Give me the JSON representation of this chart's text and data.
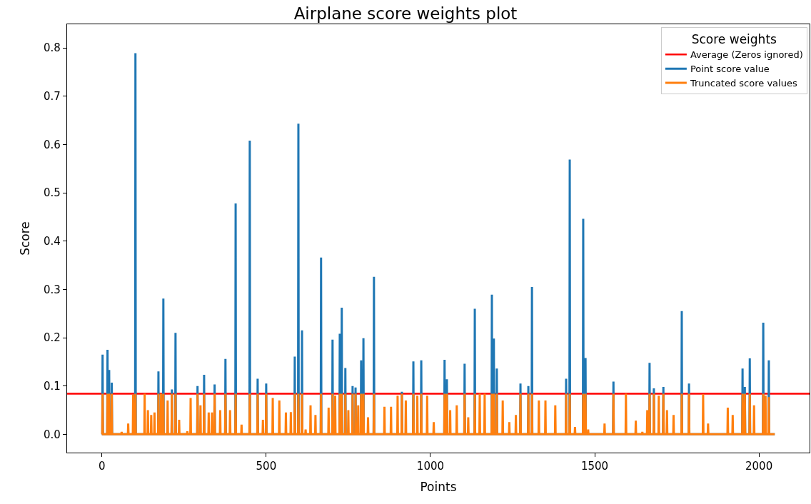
{
  "chart_data": {
    "type": "line",
    "title": "Airplane score weights plot",
    "xlabel": "Points",
    "ylabel": "Score",
    "legend_title": "Score weights",
    "legend": "top right",
    "grid": false,
    "xlim": [
      -106,
      2154
    ],
    "xticks": [
      0,
      500,
      1000,
      1500,
      2000
    ],
    "ylim": [
      -0.038,
      0.849
    ],
    "yticks": [
      {
        "value": 0,
        "label": "0.0"
      },
      {
        "value": 0.1,
        "label": "0.1"
      },
      {
        "value": 0.2,
        "label": "0.2"
      },
      {
        "value": 0.3,
        "label": "0.3"
      },
      {
        "value": 0.4,
        "label": "0.4"
      },
      {
        "value": 0.5,
        "label": "0.5"
      },
      {
        "value": 0.6,
        "label": "0.6"
      },
      {
        "value": 0.7,
        "label": "0.7"
      },
      {
        "value": 0.8,
        "label": "0.8"
      }
    ],
    "ref_lines": [
      {
        "axis": "y",
        "value": 0.084,
        "label": "Average (Zeros ignored)",
        "color": "#ff0000"
      }
    ],
    "series": [
      {
        "name": "Point score value",
        "color": "#1f77b4",
        "x": [
          0,
          1,
          2,
          3,
          16,
          17,
          18,
          21,
          22,
          23,
          29,
          30,
          31,
          101,
          102,
          103,
          171,
          172,
          173,
          186,
          187,
          188,
          212,
          213,
          214,
          223,
          224,
          225,
          290,
          291,
          292,
          310,
          311,
          312,
          342,
          343,
          344,
          375,
          376,
          377,
          406,
          407,
          408,
          449,
          450,
          451,
          473,
          474,
          475,
          499,
          500,
          501,
          586,
          587,
          588,
          597,
          598,
          599,
          608,
          609,
          610,
          666,
          667,
          668,
          701,
          702,
          703,
          723,
          724,
          725,
          729,
          730,
          731,
          740,
          741,
          742,
          762,
          763,
          764,
          771,
          772,
          773,
          788,
          789,
          790,
          795,
          796,
          797,
          827,
          828,
          829,
          912,
          913,
          914,
          947,
          948,
          949,
          971,
          972,
          973,
          1042,
          1043,
          1044,
          1049,
          1050,
          1051,
          1103,
          1104,
          1105,
          1134,
          1135,
          1136,
          1186,
          1187,
          1188,
          1192,
          1193,
          1194,
          1201,
          1202,
          1203,
          1273,
          1274,
          1275,
          1297,
          1298,
          1299,
          1308,
          1309,
          1310,
          1412,
          1413,
          1414,
          1423,
          1424,
          1425,
          1464,
          1465,
          1466,
          1471,
          1472,
          1473,
          1556,
          1557,
          1558,
          1666,
          1667,
          1668,
          1679,
          1680,
          1681,
          1708,
          1709,
          1710,
          1764,
          1765,
          1766,
          1786,
          1787,
          1788,
          1949,
          1950,
          1951,
          1956,
          1957,
          1958,
          1971,
          1972,
          1973,
          2012,
          2013,
          2014,
          2029,
          2030,
          2031,
          2048
        ],
        "values": [
          0,
          0,
          0.165,
          0,
          0,
          0.175,
          0,
          0,
          0.133,
          0,
          0,
          0.107,
          0,
          0,
          0.789,
          0,
          0,
          0.13,
          0,
          0,
          0.281,
          0,
          0,
          0.093,
          0,
          0,
          0.21,
          0,
          0,
          0.1,
          0,
          0,
          0.123,
          0,
          0,
          0.103,
          0,
          0,
          0.156,
          0,
          0,
          0.478,
          0,
          0,
          0.608,
          0,
          0,
          0.115,
          0,
          0,
          0.105,
          0,
          0,
          0.161,
          0,
          0,
          0.643,
          0,
          0,
          0.215,
          0,
          0,
          0.366,
          0,
          0,
          0.196,
          0,
          0,
          0.208,
          0,
          0,
          0.262,
          0,
          0,
          0.137,
          0,
          0,
          0.1,
          0,
          0,
          0.097,
          0,
          0,
          0.153,
          0,
          0,
          0.199,
          0,
          0,
          0.326,
          0,
          0,
          0.088,
          0,
          0,
          0.151,
          0,
          0,
          0.153,
          0,
          0,
          0.154,
          0,
          0,
          0.114,
          0,
          0,
          0.146,
          0,
          0,
          0.26,
          0,
          0,
          0.289,
          0,
          0,
          0.198,
          0,
          0,
          0.136,
          0,
          0,
          0.105,
          0,
          0,
          0.1,
          0,
          0,
          0.305,
          0,
          0,
          0.115,
          0,
          0,
          0.569,
          0,
          0,
          0.446,
          0,
          0,
          0.158,
          0,
          0,
          0.109,
          0,
          0,
          0.148,
          0,
          0,
          0.095,
          0,
          0,
          0.098,
          0,
          0,
          0.255,
          0,
          0,
          0.105,
          0,
          0,
          0.136,
          0,
          0,
          0.098,
          0,
          0,
          0.157,
          0,
          0,
          0.231,
          0,
          0,
          0.153,
          0,
          0
        ]
      },
      {
        "name": "Truncated score values",
        "color": "#ff7f0e",
        "x": [
          0,
          1,
          2,
          3,
          16,
          17,
          18,
          21,
          22,
          23,
          29,
          30,
          31,
          59,
          60,
          61,
          79,
          80,
          81,
          94,
          95,
          96,
          101,
          102,
          103,
          129,
          130,
          131,
          139,
          140,
          141,
          149,
          150,
          151,
          159,
          160,
          161,
          171,
          172,
          173,
          179,
          180,
          181,
          186,
          187,
          188,
          199,
          200,
          201,
          212,
          213,
          214,
          223,
          224,
          225,
          234,
          235,
          236,
          259,
          260,
          261,
          269,
          270,
          271,
          290,
          291,
          292,
          299,
          300,
          301,
          310,
          311,
          312,
          324,
          325,
          326,
          334,
          335,
          336,
          342,
          343,
          344,
          359,
          360,
          361,
          375,
          376,
          377,
          389,
          390,
          391,
          406,
          407,
          408,
          424,
          425,
          426,
          449,
          450,
          451,
          473,
          474,
          475,
          489,
          490,
          491,
          499,
          500,
          501,
          519,
          520,
          521,
          539,
          540,
          541,
          559,
          560,
          561,
          574,
          575,
          576,
          586,
          587,
          588,
          597,
          598,
          599,
          608,
          609,
          610,
          619,
          620,
          621,
          634,
          635,
          636,
          649,
          650,
          651,
          666,
          667,
          668,
          689,
          690,
          691,
          701,
          702,
          703,
          709,
          710,
          711,
          723,
          724,
          725,
          729,
          730,
          731,
          740,
          741,
          742,
          749,
          750,
          751,
          762,
          763,
          764,
          771,
          772,
          773,
          779,
          780,
          781,
          788,
          789,
          790,
          795,
          796,
          797,
          809,
          810,
          811,
          827,
          828,
          829,
          859,
          860,
          861,
          879,
          880,
          881,
          899,
          900,
          901,
          912,
          913,
          914,
          924,
          925,
          926,
          947,
          948,
          949,
          959,
          960,
          961,
          971,
          972,
          973,
          989,
          990,
          991,
          1009,
          1010,
          1011,
          1042,
          1043,
          1044,
          1049,
          1050,
          1051,
          1059,
          1060,
          1061,
          1079,
          1080,
          1081,
          1103,
          1104,
          1105,
          1114,
          1115,
          1116,
          1134,
          1135,
          1136,
          1149,
          1150,
          1151,
          1164,
          1165,
          1166,
          1186,
          1187,
          1188,
          1192,
          1193,
          1194,
          1201,
          1202,
          1203,
          1219,
          1220,
          1221,
          1239,
          1240,
          1241,
          1259,
          1260,
          1261,
          1273,
          1274,
          1275,
          1297,
          1298,
          1299,
          1308,
          1309,
          1310,
          1329,
          1330,
          1331,
          1349,
          1350,
          1351,
          1379,
          1380,
          1381,
          1412,
          1413,
          1414,
          1423,
          1424,
          1425,
          1439,
          1440,
          1441,
          1464,
          1465,
          1466,
          1471,
          1472,
          1473,
          1479,
          1480,
          1481,
          1529,
          1530,
          1531,
          1556,
          1557,
          1558,
          1594,
          1595,
          1596,
          1624,
          1625,
          1626,
          1644,
          1645,
          1646,
          1659,
          1660,
          1661,
          1666,
          1667,
          1668,
          1679,
          1680,
          1681,
          1694,
          1695,
          1696,
          1708,
          1709,
          1710,
          1719,
          1720,
          1721,
          1739,
          1740,
          1741,
          1764,
          1765,
          1766,
          1786,
          1787,
          1788,
          1829,
          1830,
          1831,
          1844,
          1845,
          1846,
          1904,
          1905,
          1906,
          1919,
          1920,
          1921,
          1949,
          1950,
          1951,
          1956,
          1957,
          1958,
          1971,
          1972,
          1973,
          1984,
          1985,
          1986,
          2012,
          2013,
          2014,
          2019,
          2020,
          2021,
          2029,
          2030,
          2031,
          2048
        ],
        "values": [
          0,
          0,
          0.084,
          0,
          0,
          0.084,
          0,
          0,
          0.084,
          0,
          0,
          0.084,
          0,
          0,
          0.005,
          0,
          0,
          0.022,
          0,
          0,
          0.082,
          0,
          0,
          0.084,
          0,
          0,
          0.084,
          0,
          0,
          0.05,
          0,
          0,
          0.04,
          0,
          0,
          0.045,
          0,
          0,
          0.084,
          0,
          0,
          0.084,
          0,
          0,
          0.084,
          0,
          0,
          0.07,
          0,
          0,
          0.084,
          0,
          0,
          0.084,
          0,
          0,
          0.03,
          0,
          0,
          0.006,
          0,
          0,
          0.075,
          0,
          0,
          0.084,
          0,
          0,
          0.06,
          0,
          0,
          0.084,
          0,
          0,
          0.045,
          0,
          0,
          0.045,
          0,
          0,
          0.084,
          0,
          0,
          0.05,
          0,
          0,
          0.084,
          0,
          0,
          0.05,
          0,
          0,
          0.084,
          0,
          0,
          0.02,
          0,
          0,
          0.084,
          0,
          0,
          0.084,
          0,
          0,
          0.03,
          0,
          0,
          0.084,
          0,
          0,
          0.075,
          0,
          0,
          0.07,
          0,
          0,
          0.045,
          0,
          0,
          0.046,
          0,
          0,
          0.084,
          0,
          0,
          0.084,
          0,
          0,
          0.084,
          0,
          0,
          0.01,
          0,
          0,
          0.06,
          0,
          0,
          0.04,
          0,
          0,
          0.084,
          0,
          0,
          0.055,
          0,
          0,
          0.084,
          0,
          0,
          0.08,
          0,
          0,
          0.084,
          0,
          0,
          0.084,
          0,
          0,
          0.084,
          0,
          0,
          0.05,
          0,
          0,
          0.084,
          0,
          0,
          0.084,
          0,
          0,
          0.06,
          0,
          0,
          0.084,
          0,
          0,
          0.084,
          0,
          0,
          0.035,
          0,
          0,
          0.084,
          0,
          0,
          0.057,
          0,
          0,
          0.057,
          0,
          0,
          0.08,
          0,
          0,
          0.084,
          0,
          0,
          0.07,
          0,
          0,
          0.084,
          0,
          0,
          0.08,
          0,
          0,
          0.084,
          0,
          0,
          0.08,
          0,
          0,
          0.025,
          0,
          0,
          0.084,
          0,
          0,
          0.084,
          0,
          0,
          0.05,
          0,
          0,
          0.06,
          0,
          0,
          0.084,
          0,
          0,
          0.035,
          0,
          0,
          0.084,
          0,
          0,
          0.084,
          0,
          0,
          0.084,
          0,
          0,
          0.084,
          0,
          0,
          0.084,
          0,
          0,
          0.084,
          0,
          0,
          0.07,
          0,
          0,
          0.025,
          0,
          0,
          0.04,
          0,
          0,
          0.084,
          0,
          0,
          0.084,
          0,
          0,
          0.084,
          0,
          0,
          0.07,
          0,
          0,
          0.07,
          0,
          0,
          0.06,
          0,
          0,
          0.084,
          0,
          0,
          0.084,
          0,
          0,
          0.015,
          0,
          0,
          0.084,
          0,
          0,
          0.084,
          0,
          0,
          0.01,
          0,
          0,
          0.022,
          0,
          0,
          0.084,
          0,
          0,
          0.084,
          0,
          0,
          0.028,
          0,
          0,
          0.005,
          0,
          0,
          0.05,
          0,
          0,
          0.084,
          0,
          0,
          0.084,
          0,
          0,
          0.08,
          0,
          0,
          0.084,
          0,
          0,
          0.05,
          0,
          0,
          0.04,
          0,
          0,
          0.084,
          0,
          0,
          0.084,
          0,
          0,
          0.083,
          0,
          0,
          0.022,
          0,
          0,
          0.055,
          0,
          0,
          0.04,
          0,
          0,
          0.084,
          0,
          0,
          0.084,
          0,
          0,
          0.084,
          0,
          0,
          0.06,
          0,
          0,
          0.084,
          0,
          0,
          0.08,
          0,
          0,
          0.077,
          0,
          0
        ]
      }
    ]
  }
}
